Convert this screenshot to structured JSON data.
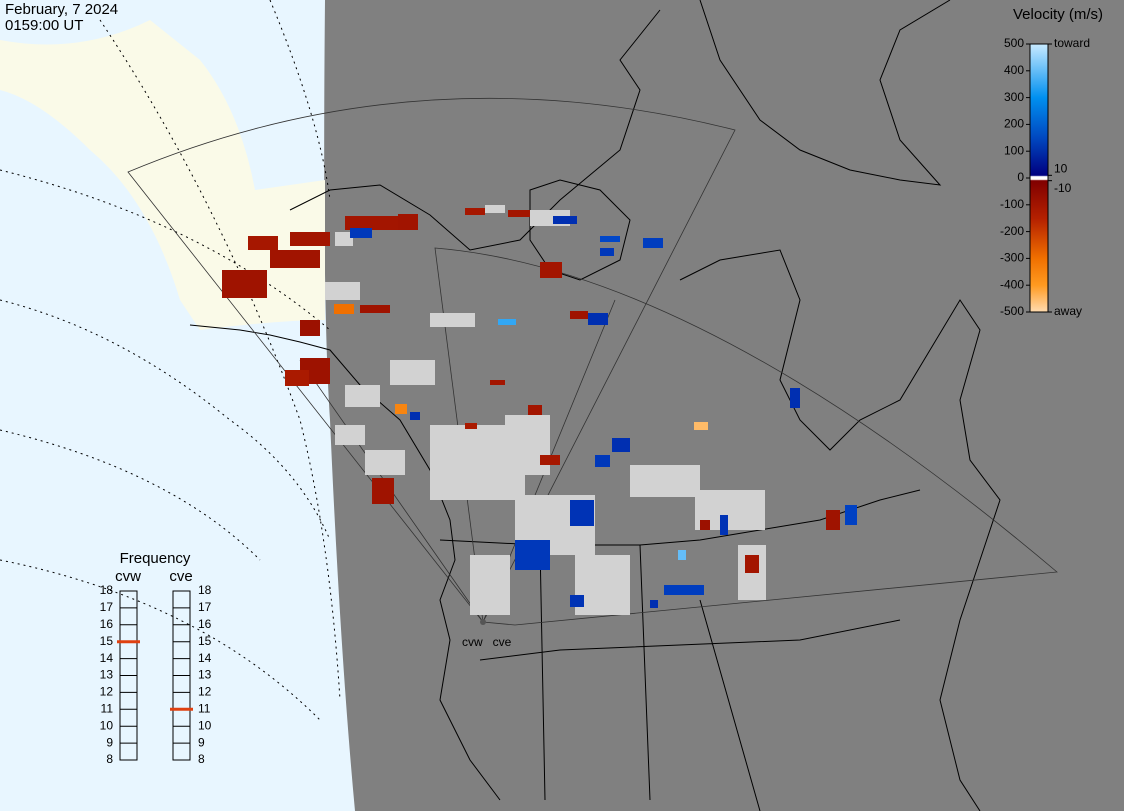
{
  "header": {
    "date": "February, 7 2024",
    "time": "0159:00 UT"
  },
  "velocity_scale": {
    "title": "Velocity (m/s)",
    "lim": [
      -500,
      500
    ],
    "ticks": [
      500,
      400,
      300,
      200,
      100,
      0,
      -100,
      -200,
      -300,
      -400,
      -500
    ],
    "side_ticks": [
      {
        "value": 500,
        "label": "toward"
      },
      10,
      -10,
      {
        "value": -500,
        "label": "away"
      }
    ]
  },
  "radars": [
    {
      "name": "cvw"
    },
    {
      "name": "cve"
    }
  ],
  "frequency": {
    "title": "Frequency",
    "lim": [
      8,
      18
    ],
    "ticks": [
      8,
      9,
      10,
      11,
      12,
      13,
      14,
      15,
      16,
      17,
      18
    ],
    "radars": [
      {
        "name": "cvw",
        "value": 15
      },
      {
        "name": "cve",
        "value": 11
      }
    ]
  },
  "velocities": [
    -90,
    -110,
    -95,
    -100,
    -85,
    -120,
    -100,
    -95,
    120,
    -80,
    -300,
    -90,
    -110,
    -100,
    100,
    -100,
    150,
    130,
    120,
    100,
    -90,
    350,
    100,
    -450,
    -350,
    100,
    -100,
    -110,
    -90,
    120,
    100,
    110,
    120,
    110,
    130,
    110,
    -90,
    140,
    -100,
    400,
    100,
    -80,
    -100,
    -120
  ]
}
